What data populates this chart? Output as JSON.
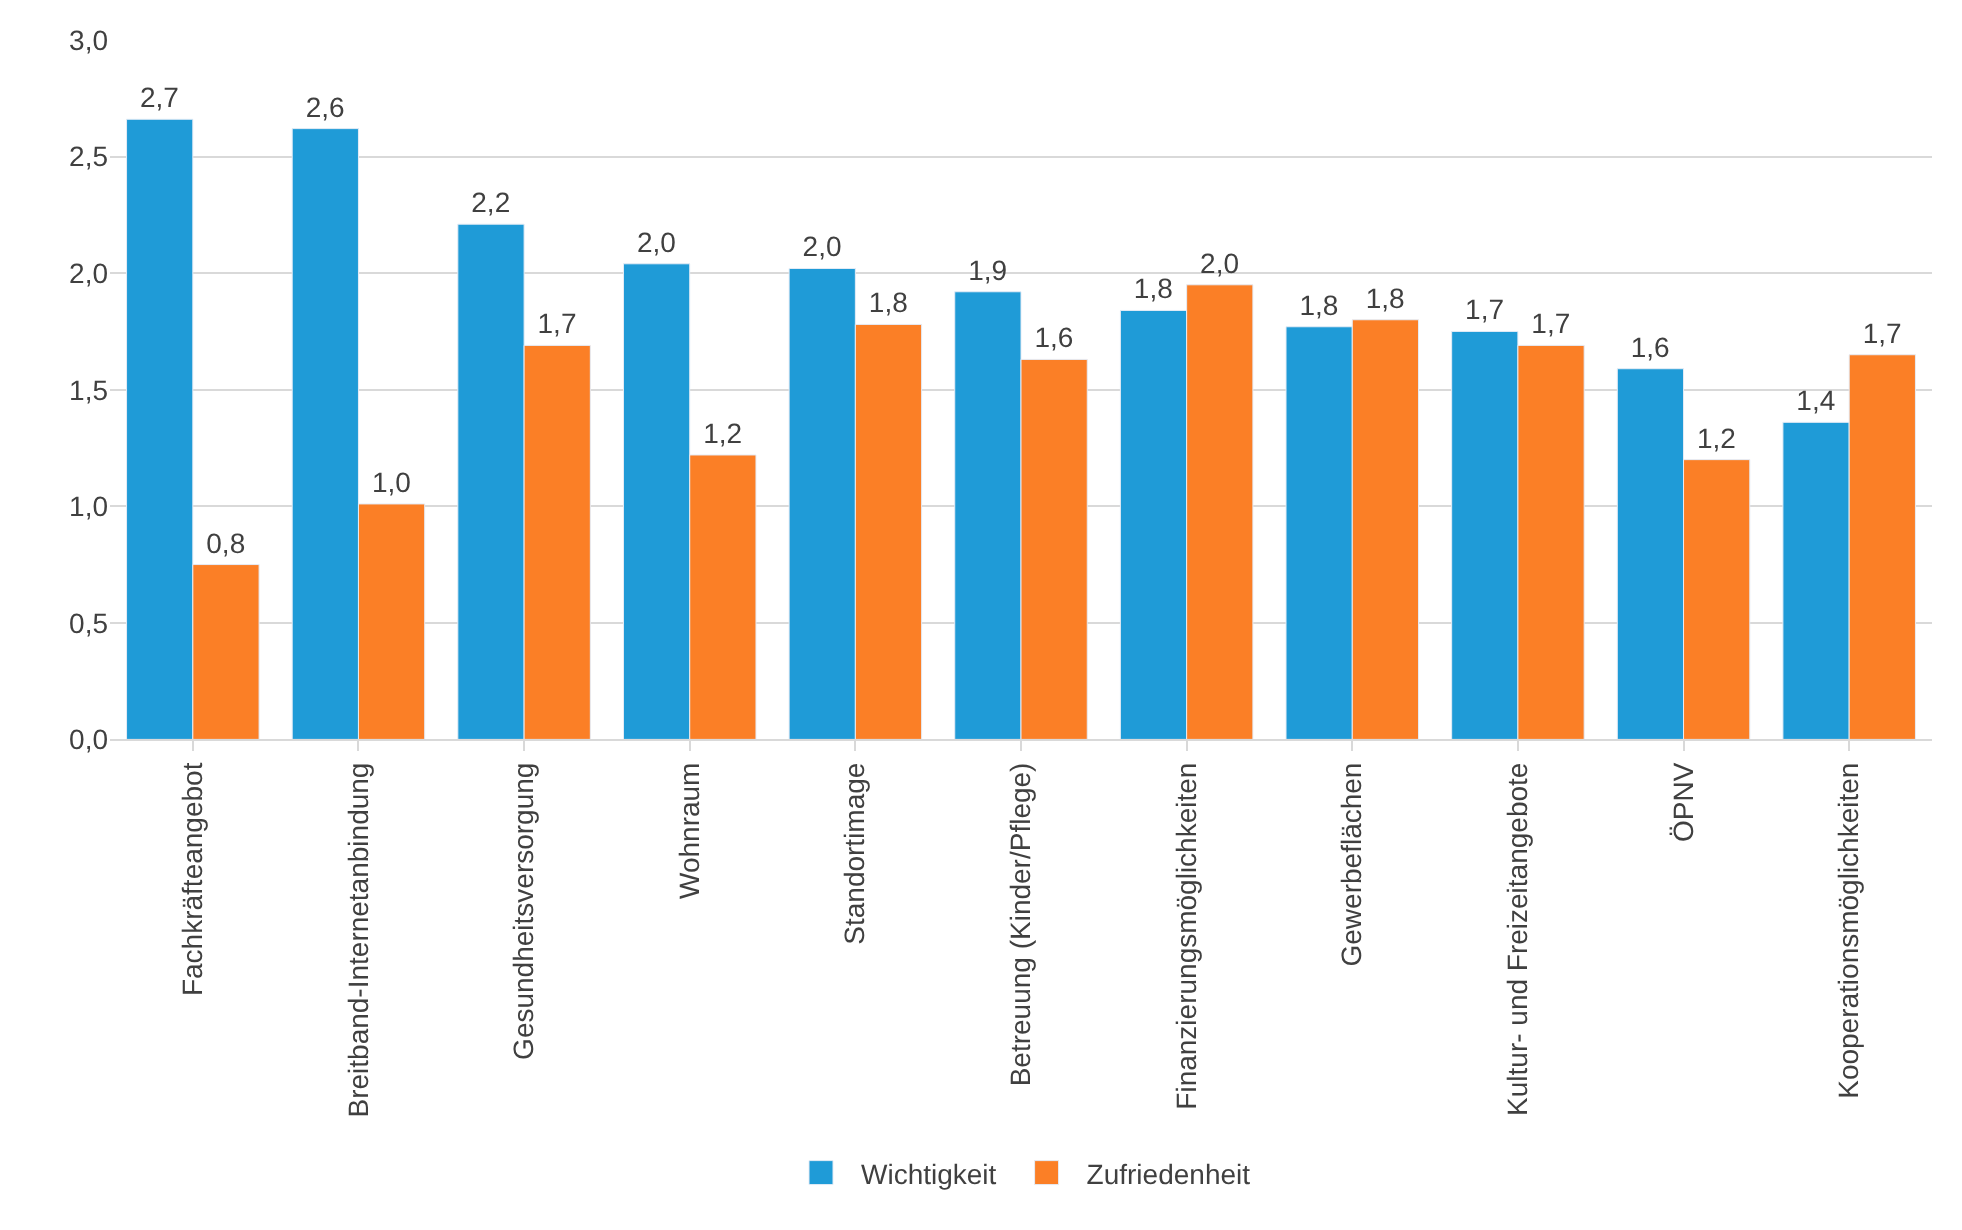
{
  "chart_data": {
    "type": "bar",
    "categories": [
      "Fachkräfteangebot",
      "Breitband-Internetanbindung",
      "Gesundheitsversorgung",
      "Wohnraum",
      "Standortimage",
      "Betreuung (Kinder/Pflege)",
      "Finanzierungsmöglichkeiten",
      "Gewerbeflächen",
      "Kultur- und Freizeitangebote",
      "ÖPNV",
      "Kooperationsmöglichkeiten"
    ],
    "series": [
      {
        "name": "Wichtigkeit",
        "color": "#1f9bd7",
        "values": [
          2.66,
          2.62,
          2.21,
          2.04,
          2.02,
          1.92,
          1.84,
          1.77,
          1.75,
          1.59,
          1.36
        ],
        "value_labels": [
          "2,7",
          "2,6",
          "2,2",
          "2,0",
          "2,0",
          "1,9",
          "1,8",
          "1,8",
          "1,7",
          "1,6",
          "1,4"
        ]
      },
      {
        "name": "Zufriedenheit",
        "color": "#fb7f26",
        "values": [
          0.75,
          1.01,
          1.69,
          1.22,
          1.78,
          1.63,
          1.95,
          1.8,
          1.69,
          1.2,
          1.65
        ],
        "value_labels": [
          "0,8",
          "1,0",
          "1,7",
          "1,2",
          "1,8",
          "1,6",
          "2,0",
          "1,8",
          "1,7",
          "1,2",
          "1,7"
        ]
      }
    ],
    "ylim": [
      0,
      3
    ],
    "yticks": [
      {
        "value": 0,
        "label": "0,0"
      },
      {
        "value": 0.5,
        "label": "0,5"
      },
      {
        "value": 1,
        "label": "1,0"
      },
      {
        "value": 1.5,
        "label": "1,5"
      },
      {
        "value": 2,
        "label": "2,0"
      },
      {
        "value": 2.5,
        "label": "2,5"
      },
      {
        "value": 3,
        "label": "3,0"
      }
    ],
    "grid": "y",
    "legend": "bottom"
  }
}
